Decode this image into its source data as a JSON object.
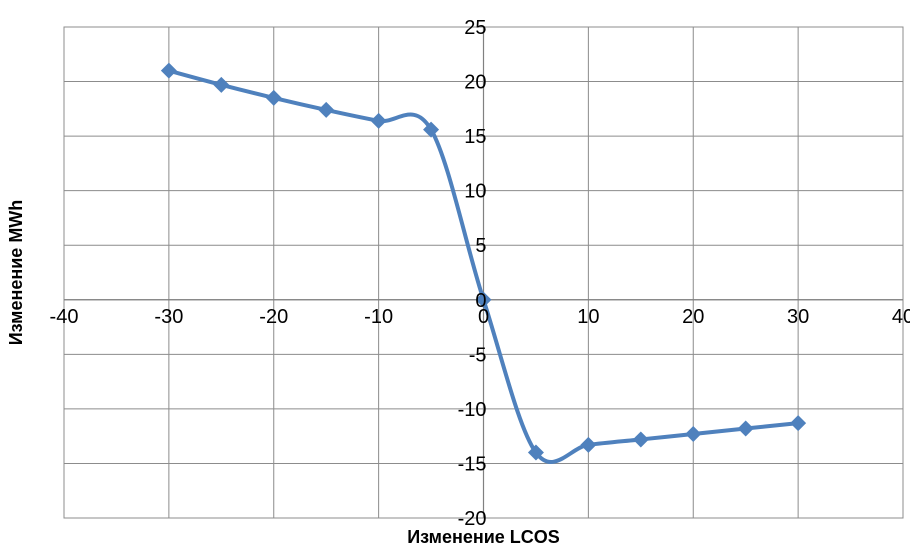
{
  "chart_data": {
    "type": "line",
    "xlabel": "Изменение LCOS",
    "ylabel": "Изменение MWh",
    "xlim": [
      -40,
      40
    ],
    "ylim": [
      -20,
      25
    ],
    "xticks": [
      "-40",
      "-30",
      "-20",
      "-10",
      "0",
      "10",
      "20",
      "30",
      "40"
    ],
    "yticks": [
      "25",
      "20",
      "15",
      "10",
      "5",
      "0",
      "-5",
      "-10",
      "-15",
      "-20"
    ],
    "grid": true,
    "smooth": true,
    "line_color": "#4f81bd",
    "marker": "diamond",
    "series": [
      {
        "x": [
          -30,
          -25,
          -20,
          -15,
          -10,
          -5,
          0,
          5,
          10,
          15,
          20,
          25,
          30
        ],
        "values": [
          21.0,
          19.7,
          18.5,
          17.4,
          16.4,
          15.6,
          0,
          -14.0,
          -13.3,
          -12.8,
          -12.3,
          -11.8,
          -11.3
        ]
      }
    ]
  }
}
